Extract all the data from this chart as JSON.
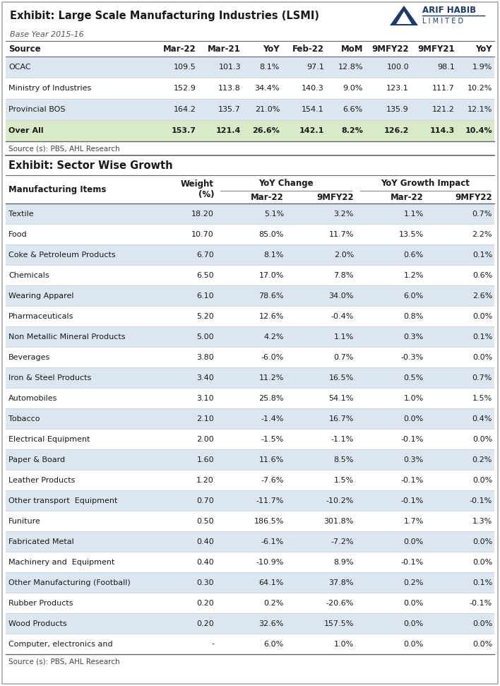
{
  "title1": "Exhibit: Large Scale Manufacturing Industries (LSMI)",
  "subtitle1": "Base Year 2015-16",
  "table1_headers": [
    "Source",
    "Mar-22",
    "Mar-21",
    "YoY",
    "Feb-22",
    "MoM",
    "9MFY22",
    "9MFY21",
    "YoY"
  ],
  "table1_rows": [
    [
      "OCAC",
      "109.5",
      "101.3",
      "8.1%",
      "97.1",
      "12.8%",
      "100.0",
      "98.1",
      "1.9%"
    ],
    [
      "Ministry of Industries",
      "152.9",
      "113.8",
      "34.4%",
      "140.3",
      "9.0%",
      "123.1",
      "111.7",
      "10.2%"
    ],
    [
      "Provincial BOS",
      "164.2",
      "135.7",
      "21.0%",
      "154.1",
      "6.6%",
      "135.9",
      "121.2",
      "12.1%"
    ],
    [
      "Over All",
      "153.7",
      "121.4",
      "26.6%",
      "142.1",
      "8.2%",
      "126.2",
      "114.3",
      "10.4%"
    ]
  ],
  "source1": "Source (s): PBS, AHL Research",
  "title2": "Exhibit: Sector Wise Growth",
  "table2_rows": [
    [
      "Textile",
      "18.20",
      "5.1%",
      "3.2%",
      "1.1%",
      "0.7%"
    ],
    [
      "Food",
      "10.70",
      "85.0%",
      "11.7%",
      "13.5%",
      "2.2%"
    ],
    [
      "Coke & Petroleum Products",
      "6.70",
      "8.1%",
      "2.0%",
      "0.6%",
      "0.1%"
    ],
    [
      "Chemicals",
      "6.50",
      "17.0%",
      "7.8%",
      "1.2%",
      "0.6%"
    ],
    [
      "Wearing Apparel",
      "6.10",
      "78.6%",
      "34.0%",
      "6.0%",
      "2.6%"
    ],
    [
      "Pharmaceuticals",
      "5.20",
      "12.6%",
      "-0.4%",
      "0.8%",
      "0.0%"
    ],
    [
      "Non Metallic Mineral Products",
      "5.00",
      "4.2%",
      "1.1%",
      "0.3%",
      "0.1%"
    ],
    [
      "Beverages",
      "3.80",
      "-6.0%",
      "0.7%",
      "-0.3%",
      "0.0%"
    ],
    [
      "Iron & Steel Products",
      "3.40",
      "11.2%",
      "16.5%",
      "0.5%",
      "0.7%"
    ],
    [
      "Automobiles",
      "3.10",
      "25.8%",
      "54.1%",
      "1.0%",
      "1.5%"
    ],
    [
      "Tobacco",
      "2.10",
      "-1.4%",
      "16.7%",
      "0.0%",
      "0.4%"
    ],
    [
      "Electrical Equipment",
      "2.00",
      "-1.5%",
      "-1.1%",
      "-0.1%",
      "0.0%"
    ],
    [
      "Paper & Board",
      "1.60",
      "11.6%",
      "8.5%",
      "0.3%",
      "0.2%"
    ],
    [
      "Leather Products",
      "1.20",
      "-7.6%",
      "1.5%",
      "-0.1%",
      "0.0%"
    ],
    [
      "Other transport  Equipment",
      "0.70",
      "-11.7%",
      "-10.2%",
      "-0.1%",
      "-0.1%"
    ],
    [
      "Funiture",
      "0.50",
      "186.5%",
      "301.8%",
      "1.7%",
      "1.3%"
    ],
    [
      "Fabricated Metal",
      "0.40",
      "-6.1%",
      "-7.2%",
      "0.0%",
      "0.0%"
    ],
    [
      "Machinery and  Equipment",
      "0.40",
      "-10.9%",
      "8.9%",
      "-0.1%",
      "0.0%"
    ],
    [
      "Other Manufacturing (Football)",
      "0.30",
      "64.1%",
      "37.8%",
      "0.2%",
      "0.1%"
    ],
    [
      "Rubber Products",
      "0.20",
      "0.2%",
      "-20.6%",
      "0.0%",
      "-0.1%"
    ],
    [
      "Wood Products",
      "0.20",
      "32.6%",
      "157.5%",
      "0.0%",
      "0.0%"
    ],
    [
      "Computer, electronics and",
      "-",
      "6.0%",
      "1.0%",
      "0.0%",
      "0.0%"
    ]
  ],
  "source2": "Source (s): PBS, AHL Research",
  "bg_color": "#ffffff",
  "row_alt1": "#dce6f1",
  "row_alt2": "#ffffff",
  "overall_bg": "#d9eac8",
  "logo_blue": "#1a3a6b",
  "text_dark": "#1a1a1a",
  "text_gray": "#444444",
  "line_dark": "#666666",
  "line_light": "#cccccc"
}
